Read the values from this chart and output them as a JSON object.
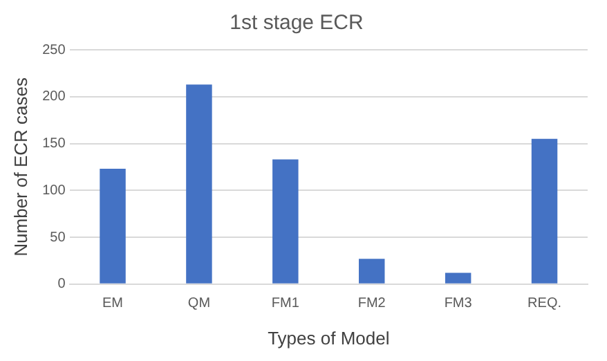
{
  "chart_data": {
    "type": "bar",
    "title": "1st stage ECR",
    "xlabel": "Types of Model",
    "ylabel": "Number of ECR cases",
    "categories": [
      "EM",
      "QM",
      "FM1",
      "FM2",
      "FM3",
      "REQ."
    ],
    "values": [
      123,
      213,
      133,
      27,
      12,
      155
    ],
    "color": "#4472c4",
    "ylim": [
      0,
      250
    ],
    "yticks": [
      0,
      50,
      100,
      150,
      200,
      250
    ],
    "grid": "y"
  }
}
